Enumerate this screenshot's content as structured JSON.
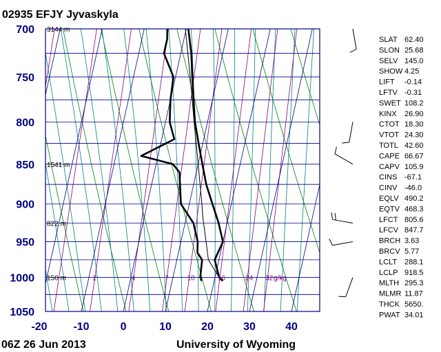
{
  "header": {
    "title": "02935 EFJY Jyvaskyla"
  },
  "footer": {
    "left": "06Z 26 Jun 2013",
    "right": "University of Wyoming"
  },
  "chart_data": {
    "type": "line",
    "title": "02935 EFJY Jyvaskyla",
    "xlabel": "",
    "ylabel": "",
    "xlim": [
      -20,
      45
    ],
    "ylim": [
      1050,
      700
    ],
    "y_scale": "log-pressure",
    "x_ticks": [
      "-20",
      "-10",
      "0",
      "10",
      "20",
      "30",
      "40"
    ],
    "y_ticks": [
      "700",
      "750",
      "800",
      "850",
      "900",
      "950",
      "1000",
      "1050"
    ],
    "height_labels": [
      {
        "pressure": 700,
        "label": "3144 m"
      },
      {
        "pressure": 850,
        "label": "1541 m"
      },
      {
        "pressure": 925,
        "label": "822 m"
      },
      {
        "pressure": 1000,
        "label": "150 m"
      }
    ],
    "mixing_ratio_labels": [
      "2",
      "4",
      "7",
      "10",
      "16",
      "24",
      "32",
      "g/kg"
    ],
    "grid": true,
    "skew": true,
    "series": [
      {
        "role": "temperature",
        "color": "#000000",
        "points": [
          [
            1005,
            22.0
          ],
          [
            1000,
            21.0
          ],
          [
            975,
            19.0
          ],
          [
            950,
            20.0
          ],
          [
            925,
            18.0
          ],
          [
            900,
            15.5
          ],
          [
            875,
            13.0
          ],
          [
            850,
            11.0
          ],
          [
            825,
            9.0
          ],
          [
            800,
            7.0
          ],
          [
            775,
            5.5
          ],
          [
            750,
            4.0
          ],
          [
            725,
            2.5
          ],
          [
            700,
            0.5
          ]
        ]
      },
      {
        "role": "dewpoint",
        "color": "#000000",
        "points": [
          [
            1005,
            17.0
          ],
          [
            1000,
            16.5
          ],
          [
            975,
            16.0
          ],
          [
            965,
            14.5
          ],
          [
            950,
            14.0
          ],
          [
            925,
            12.0
          ],
          [
            900,
            8.0
          ],
          [
            880,
            7.0
          ],
          [
            860,
            6.0
          ],
          [
            850,
            4.0
          ],
          [
            840,
            -4.0
          ],
          [
            820,
            3.0
          ],
          [
            800,
            1.0
          ],
          [
            775,
            0.0
          ],
          [
            750,
            -0.5
          ],
          [
            725,
            -4.0
          ],
          [
            710,
            -4.0
          ],
          [
            700,
            -4.5
          ]
        ]
      },
      {
        "role": "parcel",
        "color": "#000000",
        "points": [
          [
            1000,
            21.0
          ],
          [
            975,
            17.5
          ],
          [
            950,
            16.0
          ],
          [
            918.5,
            14.0
          ],
          [
            900,
            13.0
          ],
          [
            850,
            10.0
          ],
          [
            800,
            6.8
          ],
          [
            750,
            3.5
          ],
          [
            700,
            -0.2
          ]
        ]
      }
    ]
  },
  "wind_barbs": [
    {
      "pressure": 700,
      "direction_deg": 170,
      "speed_kt": 10
    },
    {
      "pressure": 800,
      "direction_deg": 190,
      "speed_kt": 10
    },
    {
      "pressure": 850,
      "direction_deg": 300,
      "speed_kt": 10
    },
    {
      "pressure": 925,
      "direction_deg": 280,
      "speed_kt": 20
    },
    {
      "pressure": 950,
      "direction_deg": 260,
      "speed_kt": 10
    },
    {
      "pressure": 1000,
      "direction_deg": 200,
      "speed_kt": 10
    }
  ],
  "indices": [
    {
      "name": "SLAT",
      "value": "62.40"
    },
    {
      "name": "SLON",
      "value": "25.68"
    },
    {
      "name": "SELV",
      "value": "145.0"
    },
    {
      "name": "SHOW",
      "value": "4.25"
    },
    {
      "name": "LIFT",
      "value": "-0.14"
    },
    {
      "name": "LFTV",
      "value": "-0.31"
    },
    {
      "name": "SWET",
      "value": "108.2"
    },
    {
      "name": "KINX",
      "value": "26.90"
    },
    {
      "name": "CTOT",
      "value": "18.30"
    },
    {
      "name": "VTOT",
      "value": "24.30"
    },
    {
      "name": "TOTL",
      "value": "42.60"
    },
    {
      "name": "CAPE",
      "value": "66.67"
    },
    {
      "name": "CAPV",
      "value": "105.9"
    },
    {
      "name": "CINS",
      "value": "-67.1"
    },
    {
      "name": "CINV",
      "value": "-46.0"
    },
    {
      "name": "EQLV",
      "value": "490.2"
    },
    {
      "name": "EQTV",
      "value": "468.3"
    },
    {
      "name": "LFCT",
      "value": "805.6"
    },
    {
      "name": "LFCV",
      "value": "847.7"
    },
    {
      "name": "BRCH",
      "value": "3.63"
    },
    {
      "name": "BRCV",
      "value": "5.77"
    },
    {
      "name": "LCLT",
      "value": "288.1"
    },
    {
      "name": "LCLP",
      "value": "918.5"
    },
    {
      "name": "MLTH",
      "value": "295.3"
    },
    {
      "name": "MLMR",
      "value": "11.87"
    },
    {
      "name": "THCK",
      "value": "5650."
    },
    {
      "name": "PWAT",
      "value": "34.01"
    }
  ],
  "colors": {
    "frame": "#000080",
    "isotherm": "#000080",
    "dry_adiabat": "#008000",
    "moist_adiabat": "#008080",
    "mixing_ratio": "#800080",
    "profile": "#000000",
    "axis_labels": "#000080"
  }
}
